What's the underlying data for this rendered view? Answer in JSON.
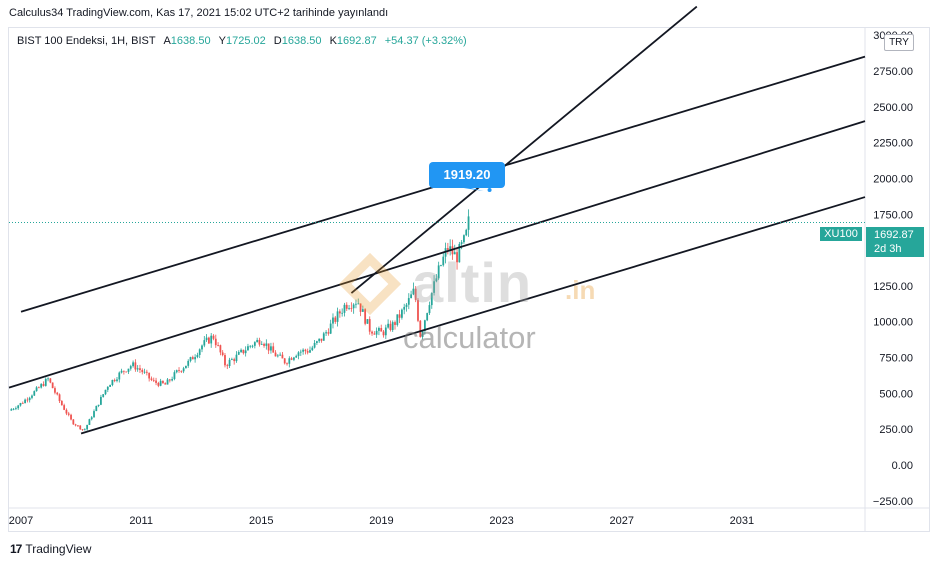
{
  "header": {
    "caption": "Calculus34 TradingView.com, Kas 17, 2021 15:02 UTC+2 tarihinde yayınlandı"
  },
  "legend": {
    "symbol": "BIST 100 Endeksi, 1H, BIST",
    "open_label": "A",
    "open": "1638.50",
    "high_label": "Y",
    "high": "1725.02",
    "low_label": "D",
    "low": "1638.50",
    "close_label": "K",
    "close": "1692.87",
    "change": "+54.37 (+3.32%)"
  },
  "currency": "TRY",
  "price_marker": {
    "symbol": "XU100",
    "price": "1692.87",
    "countdown": "2d 3h"
  },
  "callout_label": "1919.20",
  "watermark": {
    "brand": "altin",
    "suffix": ".in",
    "subtitle": "calculator"
  },
  "footer": {
    "logo_mark": "17",
    "brand": "TradingView"
  },
  "colors": {
    "up": "#26a69a",
    "down": "#ef5350",
    "trendline": "#131722",
    "callout": "#2196f3",
    "price_line": "#26a69a"
  },
  "chart_data": {
    "type": "candlestick",
    "title": "BIST 100 Endeksi, 1H, BIST",
    "xlabel": "",
    "ylabel": "",
    "ylim": [
      -300,
      3050
    ],
    "xlim": [
      2006.6,
      2035.1
    ],
    "y_ticks": [
      -250,
      0,
      250,
      500,
      750,
      1000,
      1250,
      1500,
      1750,
      2000,
      2250,
      2500,
      2750,
      3000
    ],
    "y_tick_labels": [
      "−250.00",
      "0.00",
      "250.00",
      "500.00",
      "750.00",
      "1000.00",
      "1250.00",
      "1500.00",
      "1750.00",
      "2000.00",
      "2250.00",
      "2500.00",
      "2750.00",
      "3000.00"
    ],
    "x_ticks": [
      2007,
      2011,
      2015,
      2019,
      2023,
      2027,
      2031
    ],
    "x_tick_labels": [
      "2007",
      "2011",
      "2015",
      "2019",
      "2023",
      "2027",
      "2031"
    ],
    "grid": false,
    "last_price": 1692.87,
    "series": [
      {
        "x": [
          2006.6,
          2007.0,
          2007.5,
          2007.9,
          2008.3,
          2008.7,
          2009.1,
          2009.5,
          2009.9,
          2010.3,
          2010.7,
          2011.0,
          2011.4,
          2011.8,
          2012.2,
          2012.6,
          2013.0,
          2013.4,
          2013.8,
          2014.2,
          2014.6,
          2015.0,
          2015.4,
          2015.8,
          2016.2,
          2016.6,
          2017.0,
          2017.4,
          2017.8,
          2018.2,
          2018.6,
          2019.0,
          2019.4,
          2019.8,
          2020.1,
          2020.3,
          2020.6,
          2020.9,
          2021.2,
          2021.5,
          2021.8,
          2021.9
        ],
        "values": [
          380,
          430,
          520,
          600,
          440,
          300,
          240,
          400,
          560,
          640,
          700,
          660,
          580,
          560,
          650,
          720,
          830,
          900,
          700,
          760,
          830,
          880,
          780,
          720,
          790,
          800,
          880,
          1000,
          1120,
          1150,
          950,
          920,
          980,
          1100,
          1220,
          900,
          1150,
          1350,
          1520,
          1450,
          1580,
          1693
        ]
      }
    ],
    "trendlines": [
      {
        "x": [
          2006.6,
          2035.1
        ],
        "values": [
          540,
          2400
        ]
      },
      {
        "x": [
          2007.0,
          2035.1
        ],
        "values": [
          1070,
          2850
        ]
      },
      {
        "x": [
          2009.0,
          2035.1
        ],
        "values": [
          220,
          1870
        ]
      },
      {
        "x": [
          2018.0,
          2029.5
        ],
        "values": [
          1200,
          3200
        ]
      }
    ],
    "annotations": [
      {
        "text": "1919.20",
        "x": 2022.6,
        "y": 1919.2
      }
    ]
  }
}
